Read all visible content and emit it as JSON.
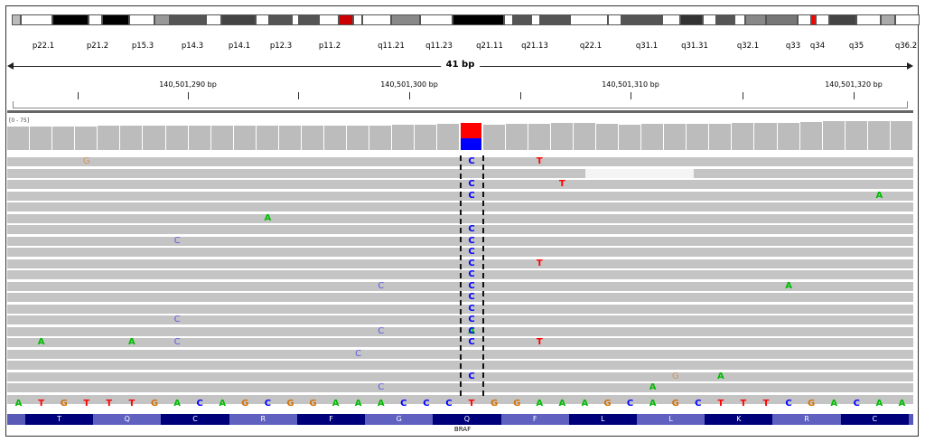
{
  "ideogram": {
    "bands": [
      {
        "label": "p22.1"
      },
      {
        "label": "p21.2"
      },
      {
        "label": "p15.3"
      },
      {
        "label": "p14.3"
      },
      {
        "label": "p14.1"
      },
      {
        "label": "p12.3"
      },
      {
        "label": "p11.2"
      },
      {
        "label": "q11.21"
      },
      {
        "label": "q11.23"
      },
      {
        "label": "q21.11"
      },
      {
        "label": "q21.13"
      },
      {
        "label": "q22.1"
      },
      {
        "label": "q31.1"
      },
      {
        "label": "q31.31"
      },
      {
        "label": "q32.1"
      },
      {
        "label": "q33"
      },
      {
        "label": "q34"
      },
      {
        "label": "q35"
      },
      {
        "label": "q36.2"
      }
    ]
  },
  "ruler": {
    "span_label": "41 bp",
    "coordinates": [
      "140,501,290 bp",
      "140,501,300 bp",
      "140,501,310 bp",
      "140,501,320 bp"
    ]
  },
  "coverage": {
    "range_label": "[0 - 75]",
    "variant_fraction_ref": 0.55,
    "colors": {
      "ref": "#ff0000",
      "alt": "#0000ff"
    }
  },
  "reads": {
    "variant_base": "C",
    "mismatches": [
      {
        "row": 1,
        "col": 3,
        "base": "G"
      },
      {
        "row": 1,
        "col": 23,
        "base": "T"
      },
      {
        "row": 3,
        "col": 24,
        "base": "T"
      },
      {
        "row": 4,
        "col": 38,
        "base": "A"
      },
      {
        "row": 6,
        "col": 11,
        "base": "A"
      },
      {
        "row": 8,
        "col": 7,
        "base": "C"
      },
      {
        "row": 10,
        "col": 23,
        "base": "T"
      },
      {
        "row": 12,
        "col": 16,
        "base": "C"
      },
      {
        "row": 12,
        "col": 34,
        "base": "A"
      },
      {
        "row": 15,
        "col": 7,
        "base": "C"
      },
      {
        "row": 16,
        "col": 16,
        "base": "C"
      },
      {
        "row": 16,
        "col": 20,
        "base": "A"
      },
      {
        "row": 17,
        "col": 1,
        "base": "A"
      },
      {
        "row": 17,
        "col": 5,
        "base": "A"
      },
      {
        "row": 17,
        "col": 7,
        "base": "C"
      },
      {
        "row": 17,
        "col": 23,
        "base": "T"
      },
      {
        "row": 18,
        "col": 15,
        "base": "C"
      },
      {
        "row": 20,
        "col": 29,
        "base": "G"
      },
      {
        "row": 20,
        "col": 31,
        "base": "A"
      },
      {
        "row": 21,
        "col": 16,
        "base": "C"
      },
      {
        "row": 21,
        "col": 28,
        "base": "A"
      }
    ],
    "variant_rows": [
      1,
      3,
      4,
      7,
      8,
      9,
      10,
      11,
      12,
      13,
      14,
      15,
      16,
      17,
      20
    ]
  },
  "sequence": [
    "A",
    "T",
    "G",
    "T",
    "T",
    "T",
    "G",
    "A",
    "C",
    "A",
    "G",
    "C",
    "G",
    "G",
    "A",
    "A",
    "A",
    "C",
    "C",
    "C",
    "T",
    "G",
    "G",
    "A",
    "A",
    "A",
    "G",
    "C",
    "A",
    "G",
    "C",
    "T",
    "T",
    "T",
    "C",
    "G",
    "A",
    "C",
    "A",
    "A"
  ],
  "translation": [
    "T",
    "Q",
    "C",
    "R",
    "F",
    "G",
    "Q",
    "F",
    "L",
    "L",
    "K",
    "R",
    "C"
  ],
  "gene": {
    "name": "BRAF"
  },
  "colors": {
    "A": "#00bb00",
    "C": "#0000ff",
    "G": "#d17105",
    "T": "#ff0000"
  }
}
